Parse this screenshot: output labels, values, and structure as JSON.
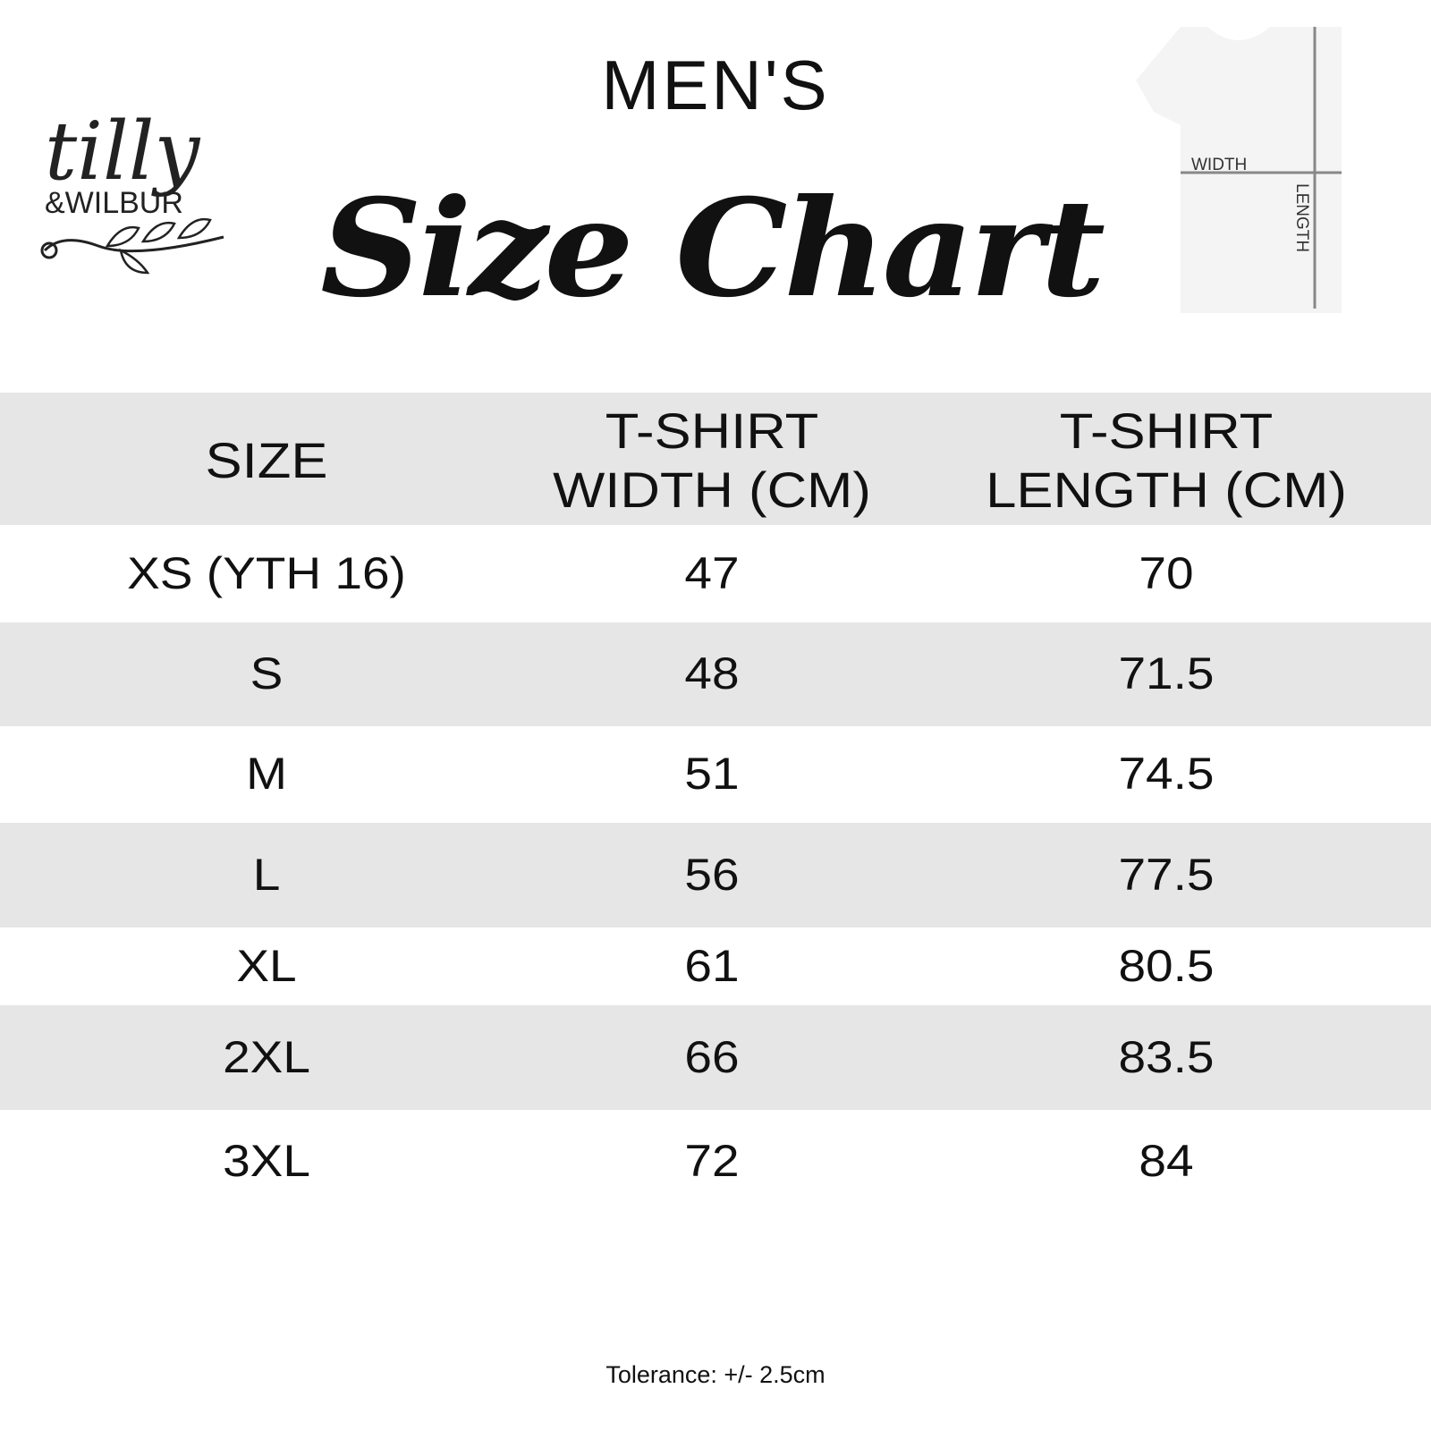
{
  "logo": {
    "text": "tilly & WILBUR"
  },
  "header": {
    "subtitle": "MEN'S",
    "title": "Size Chart"
  },
  "diagram": {
    "width_label": "WIDTH",
    "length_label": "LENGTH"
  },
  "table": {
    "columns": [
      "SIZE",
      "T-SHIRT WIDTH (CM)",
      "T-SHIRT LENGTH (CM)"
    ],
    "rows": [
      [
        "XS (YTH 16)",
        "47",
        "70"
      ],
      [
        "S",
        "48",
        "71.5"
      ],
      [
        "M",
        "51",
        "74.5"
      ],
      [
        "L",
        "56",
        "77.5"
      ],
      [
        "XL",
        "61",
        "80.5"
      ],
      [
        "2XL",
        "66",
        "83.5"
      ],
      [
        "3XL",
        "72",
        "84"
      ]
    ]
  },
  "footer": {
    "tolerance": "Tolerance: +/- 2.5cm"
  },
  "colors": {
    "band": "#e6e6e6",
    "text": "#111111"
  }
}
